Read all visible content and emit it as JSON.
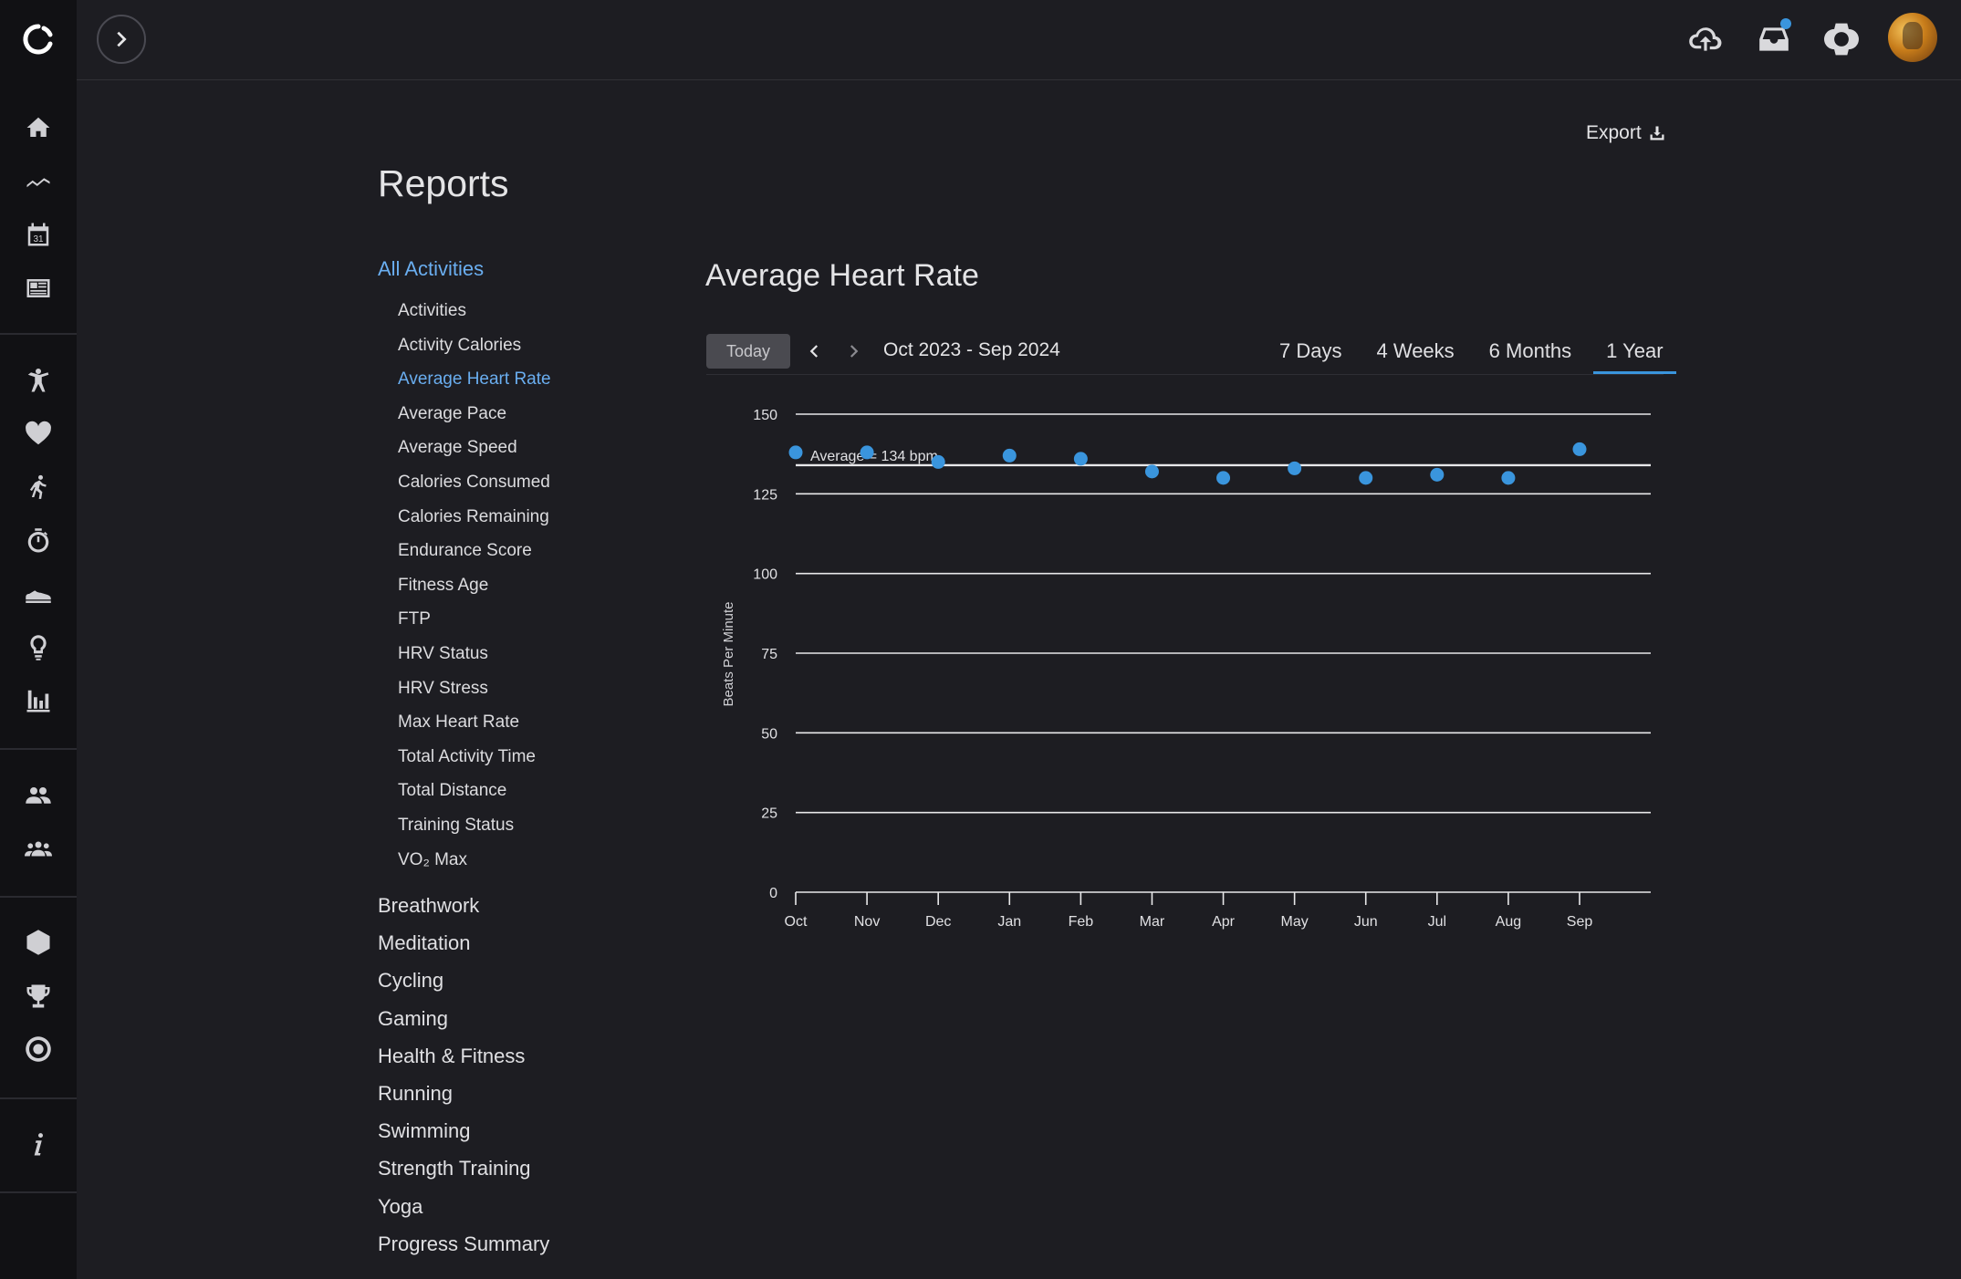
{
  "app": {
    "page_title": "Reports",
    "export_label": "Export"
  },
  "rail": {
    "icons": [
      "home-icon",
      "activity-trend-icon",
      "calendar-icon",
      "news-icon",
      "fitness-icon",
      "heart-icon",
      "running-icon",
      "stopwatch-icon",
      "shoe-icon",
      "insights-icon",
      "reports-icon",
      "connections-icon",
      "groups-icon",
      "badges-icon",
      "trophy-icon",
      "goal-icon",
      "info-icon"
    ],
    "calendar_day": "31"
  },
  "topbar": {
    "icons": [
      "upload-icon",
      "inbox-icon",
      "watch-icon"
    ]
  },
  "nav": {
    "head": "All Activities",
    "items": [
      "Activities",
      "Activity Calories",
      "Average Heart Rate",
      "Average Pace",
      "Average Speed",
      "Calories Consumed",
      "Calories Remaining",
      "Endurance Score",
      "Fitness Age",
      "FTP",
      "HRV Status",
      "HRV Stress",
      "Max Heart Rate",
      "Total Activity Time",
      "Total Distance",
      "Training Status",
      "VO₂ Max"
    ],
    "active_item": "Average Heart Rate",
    "categories": [
      "Breathwork",
      "Meditation",
      "Cycling",
      "Gaming",
      "Health & Fitness",
      "Running",
      "Swimming",
      "Strength Training",
      "Yoga",
      "Progress Summary"
    ]
  },
  "chart_header": {
    "title": "Average Heart Rate",
    "today_label": "Today",
    "date_range": "Oct 2023 - Sep 2024",
    "ranges": [
      "7 Days",
      "4 Weeks",
      "6 Months",
      "1 Year"
    ],
    "active_range": "1 Year"
  },
  "colors": {
    "accent": "#3a95dd",
    "active_text": "#6aaef0",
    "background": "#1d1d22",
    "rail": "#111114"
  },
  "chart_data": {
    "type": "scatter",
    "categories": [
      "Oct",
      "Nov",
      "Dec",
      "Jan",
      "Feb",
      "Mar",
      "Apr",
      "May",
      "Jun",
      "Jul",
      "Aug",
      "Sep"
    ],
    "values": [
      138,
      138,
      135,
      137,
      136,
      132,
      130,
      133,
      130,
      131,
      130,
      139
    ],
    "average": 134,
    "average_label": "Average = 134 bpm",
    "ylabel": "Beats Per Minute",
    "ylim": [
      0,
      150
    ],
    "yticks": [
      0,
      25,
      50,
      75,
      100,
      125,
      150
    ],
    "grid": true
  }
}
